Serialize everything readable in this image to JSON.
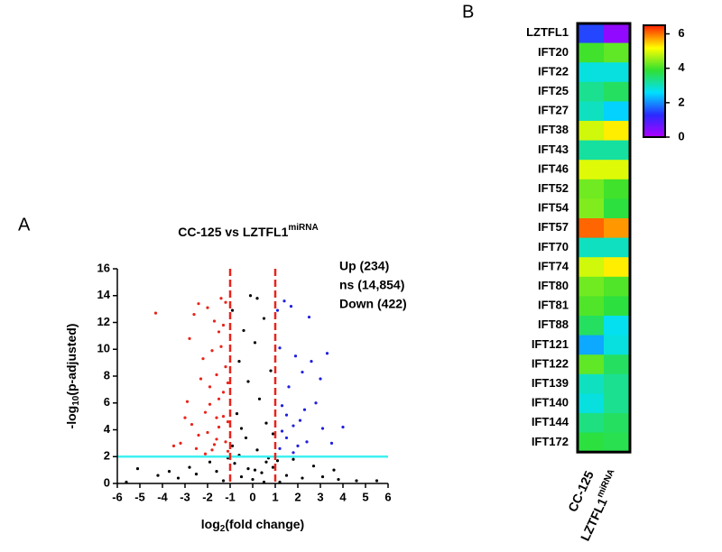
{
  "chart_data": [
    {
      "type": "scatter",
      "panel": "A",
      "title": "CC-125 vs LZTFL1",
      "title_sup": "miRNA",
      "ylabel_parts": [
        "-log",
        "10",
        "(p-adjusted)"
      ],
      "xlabel_parts": [
        "log",
        "2",
        "(fold change)"
      ],
      "xlim": [
        -6,
        6
      ],
      "ylim": [
        0,
        16
      ],
      "xticks": [
        -6,
        -5,
        -4,
        -3,
        -2,
        -1,
        0,
        1,
        2,
        3,
        4,
        5,
        6
      ],
      "yticks": [
        0,
        2,
        4,
        6,
        8,
        10,
        12,
        14,
        16
      ],
      "vlines": [
        -1,
        1
      ],
      "vline_color": "#e8241c",
      "hline": 2,
      "hline_color": "#3ff0f0",
      "series": [
        {
          "name": "Up (234)",
          "color": "#2020e0",
          "x": [
            1.2,
            1.5,
            1.8,
            2.1,
            1.3,
            1.6,
            2.4,
            2.8,
            1.1,
            1.9,
            2.2,
            3.1,
            1.4,
            2.6,
            1.7,
            3.5,
            1.2,
            2.0,
            3.0,
            2.5,
            1.5,
            4.0,
            1.3,
            2.3,
            3.3,
            1.8
          ],
          "values": [
            2.6,
            3.4,
            2.3,
            4.7,
            5.8,
            7.2,
            3.1,
            6.0,
            12.9,
            9.5,
            8.3,
            4.1,
            13.6,
            9.1,
            13.2,
            3.0,
            10.1,
            2.8,
            7.8,
            12.4,
            5.1,
            4.2,
            3.9,
            5.5,
            9.7,
            4.3
          ]
        },
        {
          "name": "ns (14,854)",
          "color": "#000000",
          "x": [
            0,
            0.4,
            -0.5,
            0.9,
            -0.8,
            1.5,
            -1.6,
            2.2,
            -2.5,
            3.1,
            -3.3,
            3.8,
            -4.2,
            4.6,
            -5.1,
            0.2,
            -0.3,
            0.6,
            -0.7,
            0.3,
            -0.2,
            0.8,
            -0.6,
            0.1,
            -0.4,
            0.5,
            -0.9,
            0.2,
            -0.1,
            0.7,
            -0.9,
            0.9,
            -0.5,
            1.8,
            -1.9,
            2.7,
            -2.8,
            3.6,
            -3.7,
            5.5,
            -5.6,
            1.2,
            -1.3,
            0.5,
            -0.2,
            0.6,
            -0.6,
            0.1,
            -1.1,
            1.1
          ],
          "values": [
            0.3,
            0.8,
            0.5,
            1.2,
            1.5,
            0.6,
            0.9,
            0.4,
            0.7,
            0.5,
            0.4,
            0.3,
            0.6,
            0.2,
            1.1,
            2.5,
            3.4,
            4.5,
            5.2,
            6.3,
            7.6,
            8.4,
            9.1,
            10.5,
            11.4,
            12.3,
            12.9,
            13.8,
            14.0,
            1.9,
            2.8,
            3.7,
            4.1,
            1.8,
            1.6,
            1.3,
            1.2,
            1.0,
            0.9,
            0.2,
            0.1,
            0.1,
            0.2,
            0.1,
            1.1,
            1.6,
            2.1,
            1.0,
            1.9,
            1.7
          ]
        },
        {
          "name": "Down (422)",
          "color": "#e8241c",
          "x": [
            -1.2,
            -1.5,
            -1.8,
            -2.1,
            -1.3,
            -1.6,
            -2.4,
            -1.1,
            -1.9,
            -2.7,
            -1.4,
            -1.7,
            -2.2,
            -1.2,
            -2.0,
            -1.5,
            -2.9,
            -3.2,
            -2.5,
            -1.3,
            -1.6,
            -1.1,
            -2.3,
            -1.8,
            -1.4,
            -2.6,
            -1.9,
            -1.2,
            -3.5,
            -4.3,
            -1.7,
            -2.0,
            -1.5,
            -2.8,
            -1.3,
            -1.1,
            -2.1,
            -1.6,
            -3.0,
            -2.4
          ],
          "values": [
            3.1,
            4.2,
            2.5,
            5.3,
            6.8,
            8.1,
            3.6,
            2.4,
            7.2,
            4.4,
            10.2,
            12.1,
            9.3,
            13.5,
            13.1,
            11.3,
            6.1,
            3.0,
            2.6,
            5.0,
            3.3,
            4.6,
            7.8,
            9.9,
            13.8,
            12.6,
            5.9,
            8.7,
            2.8,
            12.7,
            2.9,
            3.8,
            6.3,
            10.8,
            11.8,
            7.5,
            2.2,
            4.9,
            4.9,
            13.4
          ]
        }
      ]
    },
    {
      "type": "heatmap",
      "panel": "B",
      "rows": [
        "LZTFL1",
        "IFT20",
        "IFT22",
        "IFT25",
        "IFT27",
        "IFT38",
        "IFT43",
        "IFT46",
        "IFT52",
        "IFT54",
        "IFT57",
        "IFT70",
        "IFT74",
        "IFT80",
        "IFT81",
        "IFT88",
        "IFT121",
        "IFT122",
        "IFT139",
        "IFT140",
        "IFT144",
        "IFT172"
      ],
      "columns": [
        {
          "text": "CC-125"
        },
        {
          "text": "LZTFL1",
          "sup": "miRNA"
        }
      ],
      "values": [
        [
          1.5,
          0.3
        ],
        [
          4.0,
          4.2
        ],
        [
          2.8,
          2.8
        ],
        [
          3.3,
          3.6
        ],
        [
          3.0,
          2.5
        ],
        [
          4.9,
          5.3
        ],
        [
          3.2,
          3.2
        ],
        [
          5.0,
          5.0
        ],
        [
          4.3,
          4.0
        ],
        [
          4.4,
          3.8
        ],
        [
          6.1,
          5.8
        ],
        [
          3.0,
          3.0
        ],
        [
          4.9,
          5.3
        ],
        [
          4.3,
          4.1
        ],
        [
          4.1,
          3.8
        ],
        [
          3.6,
          2.7
        ],
        [
          2.2,
          2.8
        ],
        [
          4.2,
          3.6
        ],
        [
          3.0,
          3.3
        ],
        [
          2.8,
          3.3
        ],
        [
          3.4,
          3.6
        ],
        [
          3.8,
          3.7
        ]
      ],
      "zlim": [
        0,
        6.5
      ],
      "zticks": [
        0,
        2,
        4,
        6
      ],
      "colormap": [
        "#b000ff",
        "#2a2aff",
        "#00e0ff",
        "#30e030",
        "#ffff00",
        "#ff2000"
      ]
    }
  ]
}
